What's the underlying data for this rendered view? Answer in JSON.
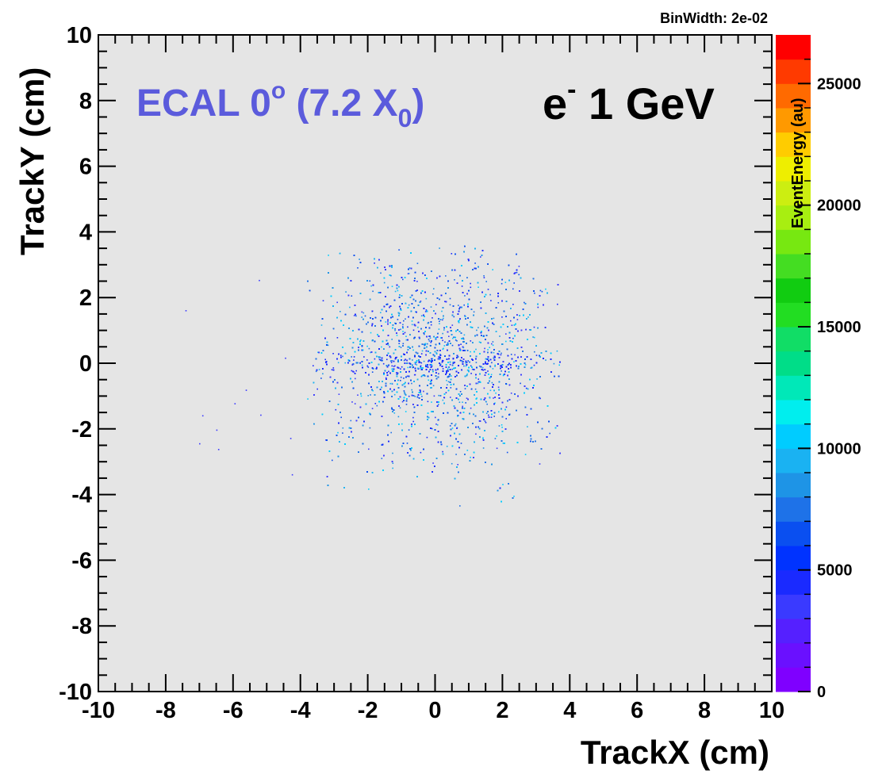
{
  "chart_data": {
    "type": "heatmap",
    "title": "",
    "stats_label": "BinWidth: 2e-02",
    "xlabel": "TrackX (cm)",
    "ylabel": "TrackY (cm)",
    "zlabel": "EventEnergy (au)",
    "xlim": [
      -10,
      10
    ],
    "ylim": [
      -10,
      10
    ],
    "zlim": [
      0,
      27000
    ],
    "x_ticks": [
      "-10",
      "-8",
      "-6",
      "-4",
      "-2",
      "0",
      "2",
      "4",
      "6",
      "8",
      "10"
    ],
    "y_ticks": [
      "-10",
      "-8",
      "-6",
      "-4",
      "-2",
      "0",
      "2",
      "4",
      "6",
      "8",
      "10"
    ],
    "z_ticks": [
      "0",
      "5000",
      "10000",
      "15000",
      "20000",
      "25000"
    ],
    "z_tick_values": [
      0,
      5000,
      10000,
      15000,
      20000,
      25000
    ],
    "annotations": {
      "detector_main": "ECAL 0",
      "detector_sup": "o",
      "detector_rest": " (7.2 X",
      "detector_sub": "0",
      "detector_close": ")",
      "particle_main": "e",
      "particle_sup": "-",
      "particle_rest": " 1 GeV"
    },
    "hit_region": {
      "x_range": [
        -3.8,
        3.7
      ],
      "y_range": [
        -4.7,
        3.6
      ],
      "dense_band_y": 0,
      "scattered_outliers_x_min": -7.5
    },
    "palette": [
      "#7f00ff",
      "#6a10ff",
      "#5520ff",
      "#3a3aff",
      "#1a2aff",
      "#0033ff",
      "#0a4ff0",
      "#1e72e8",
      "#1e94e6",
      "#1ab2f2",
      "#00ccff",
      "#00eeee",
      "#00e8b8",
      "#00dd88",
      "#11dd66",
      "#22dd22",
      "#11cc11",
      "#44dd22",
      "#77e811",
      "#a8ee11",
      "#ccee11",
      "#eeee00",
      "#ffcc00",
      "#ff9900",
      "#ff6a00",
      "#ff3a00",
      "#ff0000"
    ],
    "colors": {
      "plot_background": "#e5e5e5",
      "annotation_blue": "#5b5bdc"
    }
  }
}
